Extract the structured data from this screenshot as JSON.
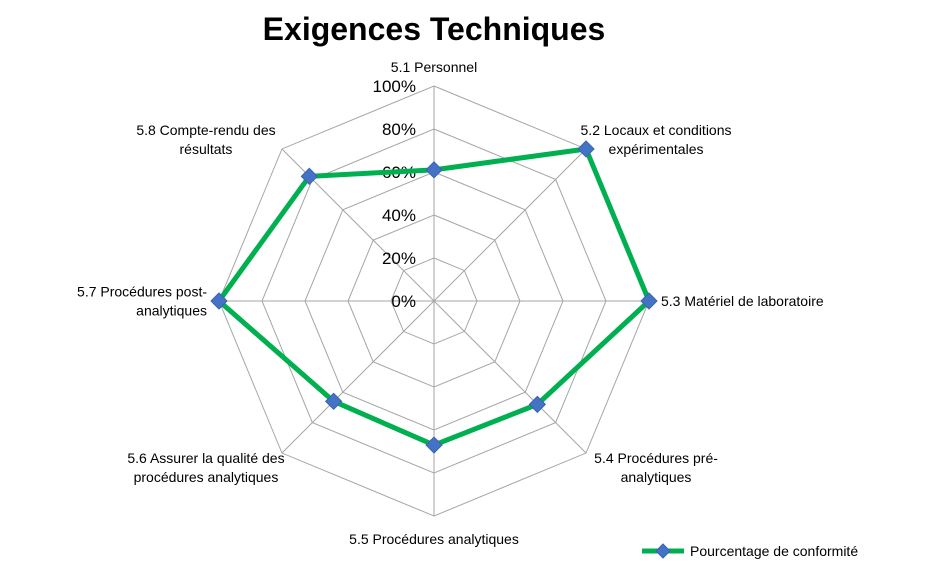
{
  "chart_data": {
    "type": "radar",
    "title": "Exigences Techniques",
    "categories": [
      "5.1 Personnel",
      "5.2 Locaux et conditions expérimentales",
      "5.3 Matériel de laboratoire",
      "5.4 Procédures pré-analytiques",
      "5.5 Procédures analytiques",
      "5.6 Assurer la qualité des procédures analytiques",
      "5.7 Procédures post-analytiques",
      "5.8 Compte-rendu des résultats"
    ],
    "category_lines": [
      [
        "5.1 Personnel"
      ],
      [
        "5.2 Locaux et conditions",
        "expérimentales"
      ],
      [
        "5.3 Matériel de laboratoire"
      ],
      [
        "5.4 Procédures pré-",
        "analytiques"
      ],
      [
        "5.5 Procédures analytiques"
      ],
      [
        "5.6 Assurer la qualité des",
        "procédures analytiques"
      ],
      [
        "5.7 Procédures post-",
        "analytiques"
      ],
      [
        "5.8 Compte-rendu des",
        "résultats"
      ]
    ],
    "ticks": [
      "0%",
      "20%",
      "40%",
      "60%",
      "80%",
      "100%"
    ],
    "ylim": [
      0,
      100
    ],
    "series": [
      {
        "name": "Pourcentage de conformité",
        "color": "#00b050",
        "marker_color": "#4472c4",
        "values": [
          61,
          100,
          100,
          68,
          67,
          66,
          100,
          82
        ]
      }
    ],
    "legend_position": "bottom-right",
    "grid": true
  }
}
